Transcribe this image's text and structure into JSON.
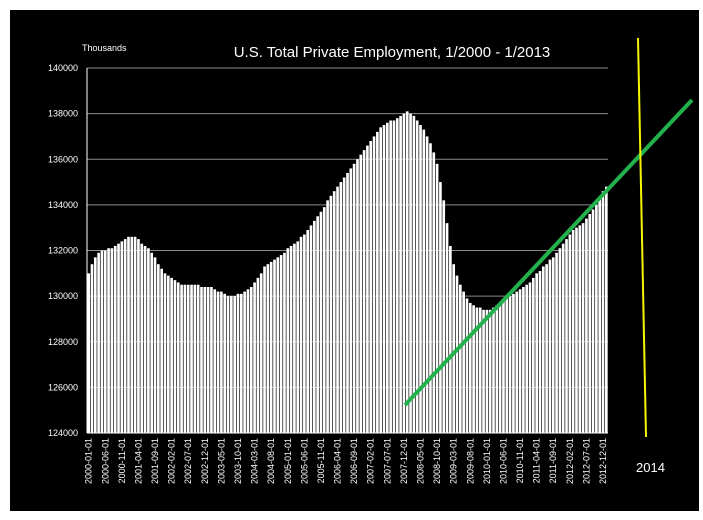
{
  "chart_data": {
    "type": "bar",
    "title": "U.S. Total Private Employment, 1/2000 - 1/2013",
    "y_unit_label": "Thousands",
    "annotation": "2014",
    "color": "#ffffff",
    "grid": true,
    "ylim": [
      124000,
      140000
    ],
    "yticks": [
      124000,
      126000,
      128000,
      130000,
      132000,
      134000,
      136000,
      138000,
      140000
    ],
    "categories": [
      "2000-01-01",
      null,
      null,
      null,
      null,
      "2000-06-01",
      null,
      null,
      null,
      null,
      "2000-11-01",
      null,
      null,
      null,
      null,
      "2001-04-01",
      null,
      null,
      null,
      null,
      "2001-09-01",
      null,
      null,
      null,
      null,
      "2002-02-01",
      null,
      null,
      null,
      null,
      "2002-07-01",
      null,
      null,
      null,
      null,
      "2002-12-01",
      null,
      null,
      null,
      null,
      "2003-05-01",
      null,
      null,
      null,
      null,
      "2003-10-01",
      null,
      null,
      null,
      null,
      "2004-03-01",
      null,
      null,
      null,
      null,
      "2004-08-01",
      null,
      null,
      null,
      null,
      "2005-01-01",
      null,
      null,
      null,
      null,
      "2005-06-01",
      null,
      null,
      null,
      null,
      "2005-11-01",
      null,
      null,
      null,
      null,
      "2006-04-01",
      null,
      null,
      null,
      null,
      "2006-09-01",
      null,
      null,
      null,
      null,
      "2007-02-01",
      null,
      null,
      null,
      null,
      "2007-07-01",
      null,
      null,
      null,
      null,
      "2007-12-01",
      null,
      null,
      null,
      null,
      "2008-05-01",
      null,
      null,
      null,
      null,
      "2008-10-01",
      null,
      null,
      null,
      null,
      "2009-03-01",
      null,
      null,
      null,
      null,
      "2009-08-01",
      null,
      null,
      null,
      null,
      "2010-01-01",
      null,
      null,
      null,
      null,
      "2010-06-01",
      null,
      null,
      null,
      null,
      "2010-11-01",
      null,
      null,
      null,
      null,
      "2011-04-01",
      null,
      null,
      null,
      null,
      "2011-09-01",
      null,
      null,
      null,
      null,
      "2012-02-01",
      null,
      null,
      null,
      null,
      "2012-07-01",
      null,
      null,
      null,
      null,
      "2012-12-01",
      null
    ],
    "values": [
      131000,
      131400,
      131700,
      131900,
      132000,
      132000,
      132100,
      132100,
      132200,
      132300,
      132400,
      132500,
      132600,
      132600,
      132600,
      132500,
      132300,
      132200,
      132100,
      131900,
      131700,
      131400,
      131200,
      131000,
      130900,
      130800,
      130700,
      130600,
      130500,
      130500,
      130500,
      130500,
      130500,
      130500,
      130400,
      130400,
      130400,
      130400,
      130300,
      130200,
      130200,
      130100,
      130000,
      130000,
      130000,
      130100,
      130100,
      130200,
      130300,
      130400,
      130600,
      130800,
      131000,
      131300,
      131400,
      131500,
      131600,
      131700,
      131800,
      131900,
      132100,
      132200,
      132300,
      132400,
      132600,
      132700,
      132900,
      133100,
      133300,
      133500,
      133700,
      133900,
      134200,
      134400,
      134600,
      134800,
      135000,
      135200,
      135400,
      135600,
      135800,
      136000,
      136200,
      136400,
      136600,
      136800,
      137000,
      137200,
      137400,
      137500,
      137600,
      137700,
      137700,
      137800,
      137900,
      138000,
      138100,
      138000,
      137900,
      137700,
      137500,
      137300,
      137000,
      136700,
      136300,
      135800,
      135000,
      134200,
      133200,
      132200,
      131400,
      130900,
      130500,
      130200,
      129900,
      129700,
      129600,
      129500,
      129500,
      129400,
      129400,
      129400,
      129500,
      129600,
      129700,
      129800,
      129900,
      130000,
      130100,
      130200,
      130300,
      130400,
      130500,
      130600,
      130800,
      131000,
      131100,
      131300,
      131400,
      131600,
      131700,
      131900,
      132100,
      132300,
      132500,
      132700,
      132900,
      133000,
      133100,
      133200,
      133400,
      133600,
      133800,
      134000,
      134300,
      134600,
      134800
    ]
  }
}
